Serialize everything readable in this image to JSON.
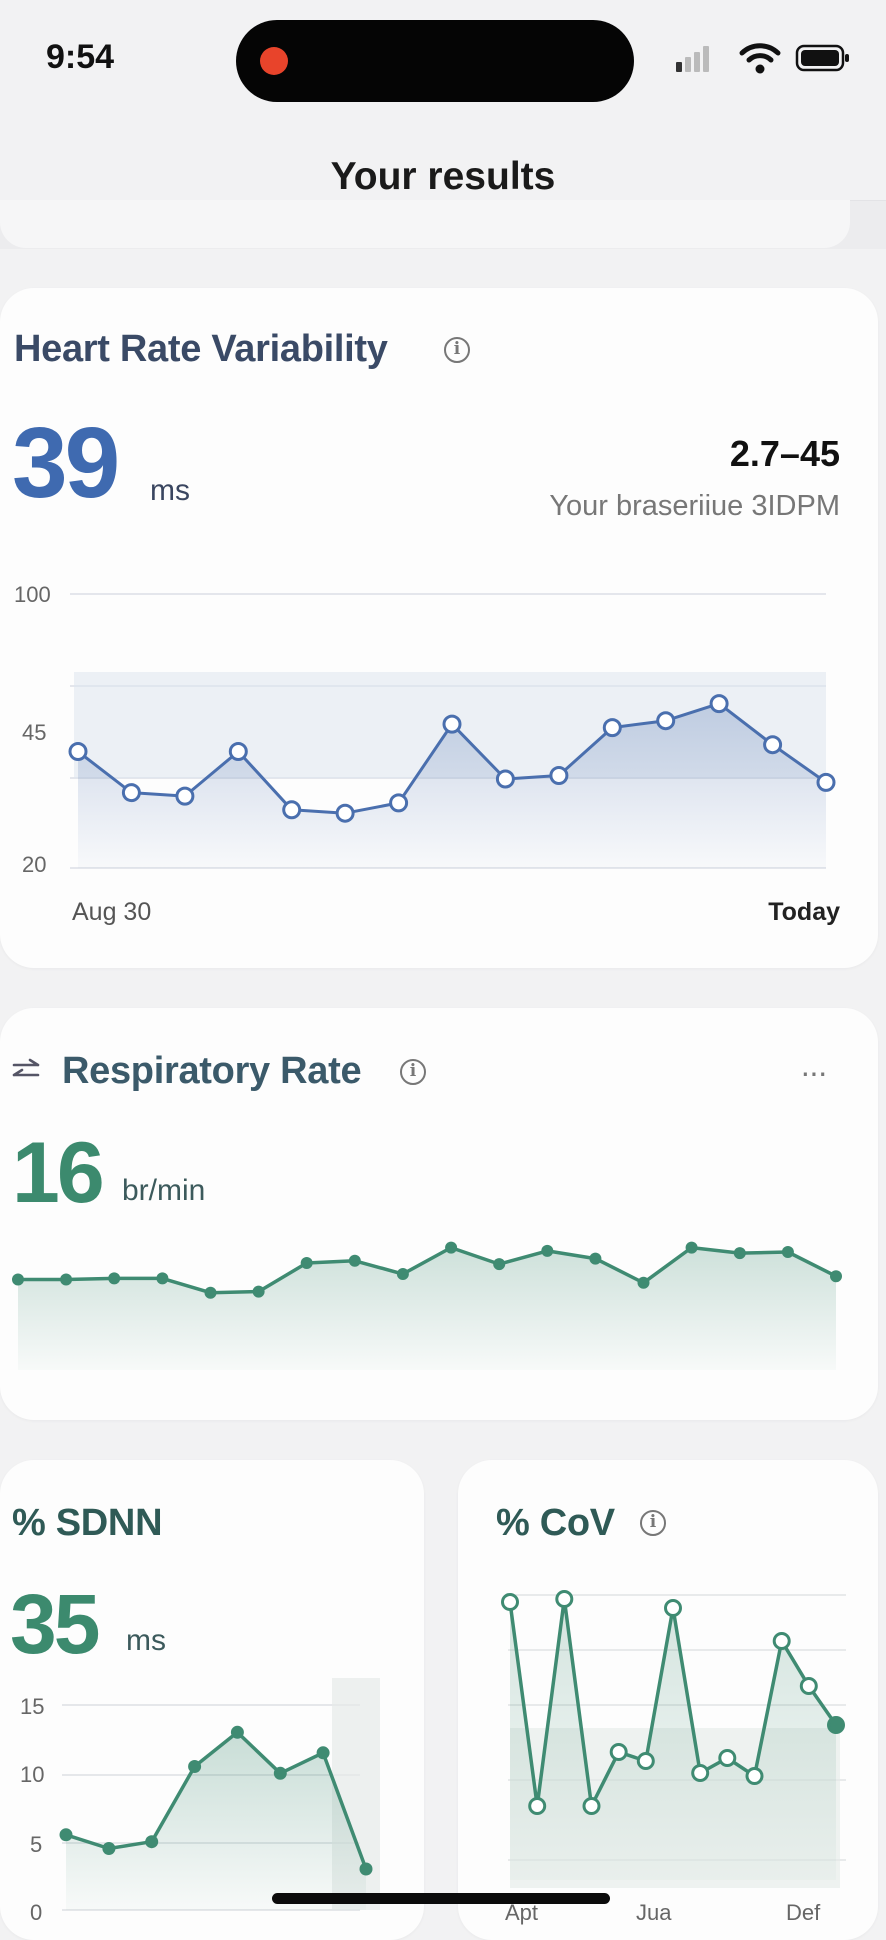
{
  "status": {
    "time": "9:54"
  },
  "header": {
    "title": "Your results"
  },
  "hrv": {
    "title": "Heart Rate Variability",
    "value": "39",
    "unit": "ms",
    "range": "2.7–45",
    "baseline_label": "Your braseriiue 3IDPM",
    "x_start": "Aug 30",
    "x_end": "Today",
    "line_color": "#4a6fae",
    "chart_data": {
      "type": "line",
      "y_ticks": [
        "100",
        "45",
        "20"
      ],
      "values": [
        54,
        42,
        41,
        54,
        37,
        36,
        39,
        62,
        46,
        47,
        61,
        63,
        68,
        56,
        45
      ]
    }
  },
  "resp": {
    "title": "Respiratory Rate",
    "value": "16",
    "unit": "br/min",
    "more": "···",
    "line_color": "#3f8b72",
    "chart_data": {
      "type": "line",
      "values": [
        55,
        55,
        56,
        56,
        43,
        44,
        70,
        72,
        60,
        84,
        69,
        81,
        74,
        52,
        84,
        79,
        80,
        58
      ]
    }
  },
  "sdnn": {
    "title": "% SDNN",
    "value": "35",
    "unit": "ms",
    "line_color": "#3f8b72",
    "chart_data": {
      "type": "line",
      "y_ticks": [
        "15",
        "10",
        "5",
        "0"
      ],
      "values": [
        5.5,
        4.5,
        5,
        10.5,
        13,
        10,
        11.5,
        3
      ]
    }
  },
  "cov": {
    "title": "% CoV",
    "x_labels": [
      "Apt",
      "Jua",
      "Def"
    ],
    "line_color": "#3f8b72",
    "chart_data": {
      "type": "line",
      "values": [
        86,
        18,
        87,
        18,
        36,
        33,
        84,
        29,
        34,
        28,
        73,
        58,
        45
      ]
    }
  }
}
